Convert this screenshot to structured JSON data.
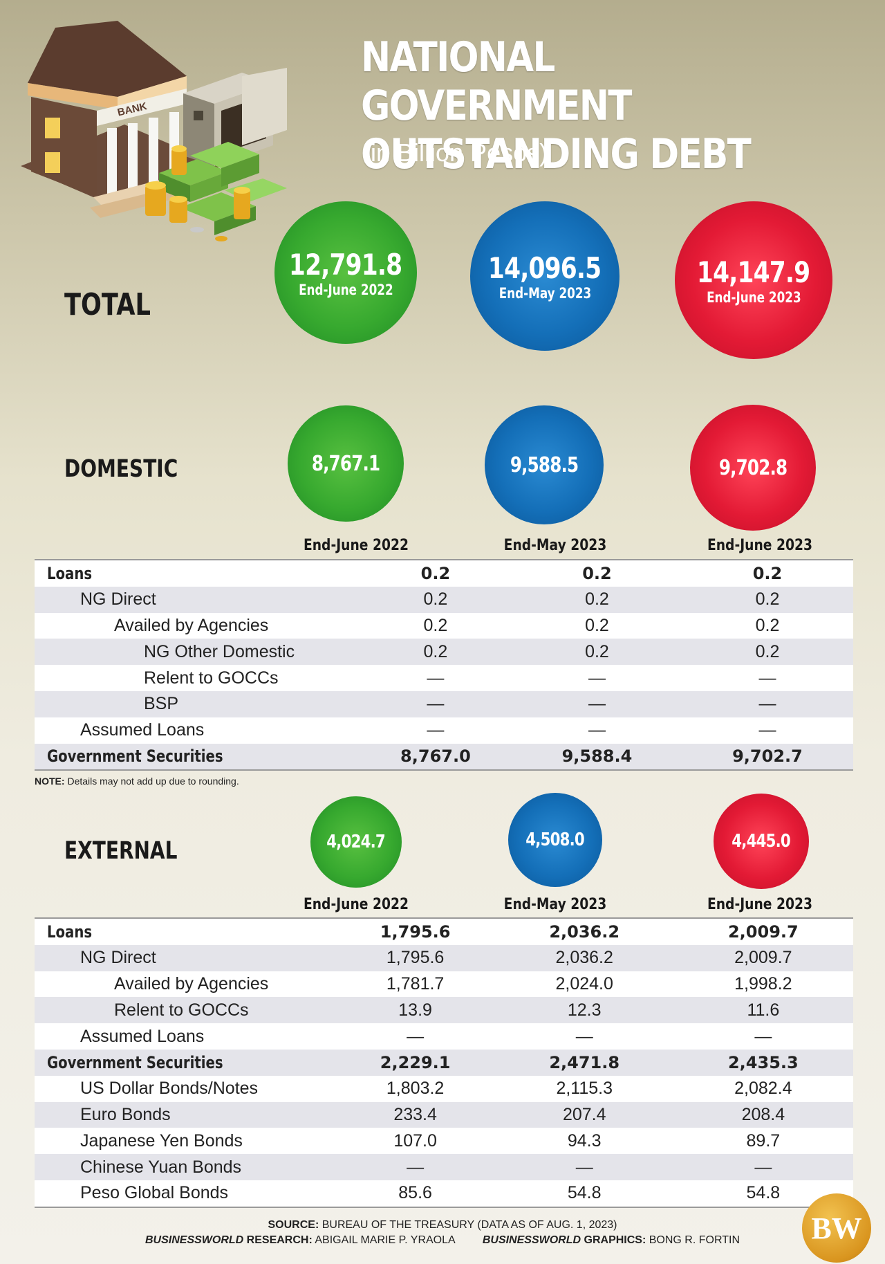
{
  "header": {
    "title_line1": "NATIONAL GOVERNMENT",
    "title_line2": "OUTSTANDING DEBT",
    "subtitle": "(in Billion Pesos)"
  },
  "colors": {
    "green": "#37a92f",
    "blue": "#146fb8",
    "red": "#e31a35",
    "logo": "#d9951f"
  },
  "icons": [
    "bank-building-icon",
    "vault-safe-icon",
    "cash-stacks-icon",
    "coins-icon"
  ],
  "periods": [
    "End-June 2022",
    "End-May 2023",
    "End-June 2023"
  ],
  "total": {
    "label": "TOTAL",
    "values": [
      "12,791.8",
      "14,096.5",
      "14,147.9"
    ]
  },
  "domestic": {
    "label": "DOMESTIC",
    "values": [
      "8,767.1",
      "9,588.5",
      "9,702.8"
    ],
    "rows": [
      {
        "label": "Loans",
        "level": 0,
        "bold": true,
        "values": [
          "0.2",
          "0.2",
          "0.2"
        ]
      },
      {
        "label": "NG Direct",
        "level": 1,
        "bold": false,
        "values": [
          "0.2",
          "0.2",
          "0.2"
        ]
      },
      {
        "label": "Availed by Agencies",
        "level": 2,
        "bold": false,
        "values": [
          "0.2",
          "0.2",
          "0.2"
        ]
      },
      {
        "label": "NG Other Domestic",
        "level": 3,
        "bold": false,
        "values": [
          "0.2",
          "0.2",
          "0.2"
        ]
      },
      {
        "label": "Relent to GOCCs",
        "level": 3,
        "bold": false,
        "values": [
          "—",
          "—",
          "—"
        ]
      },
      {
        "label": "BSP",
        "level": 3,
        "bold": false,
        "values": [
          "—",
          "—",
          "—"
        ]
      },
      {
        "label": "Assumed Loans",
        "level": 1,
        "bold": false,
        "values": [
          "—",
          "—",
          "—"
        ]
      },
      {
        "label": "Government Securities",
        "level": 0,
        "bold": true,
        "values": [
          "8,767.0",
          "9,588.4",
          "9,702.7"
        ]
      }
    ]
  },
  "note": {
    "label": "NOTE:",
    "text": " Details may not add up due to rounding."
  },
  "external": {
    "label": "EXTERNAL",
    "values": [
      "4,024.7",
      "4,508.0",
      "4,445.0"
    ],
    "rows": [
      {
        "label": "Loans",
        "level": 0,
        "bold": true,
        "values": [
          "1,795.6",
          "2,036.2",
          "2,009.7"
        ]
      },
      {
        "label": "NG Direct",
        "level": 1,
        "bold": false,
        "values": [
          "1,795.6",
          "2,036.2",
          "2,009.7"
        ]
      },
      {
        "label": "Availed by Agencies",
        "level": 2,
        "bold": false,
        "values": [
          "1,781.7",
          "2,024.0",
          "1,998.2"
        ]
      },
      {
        "label": "Relent to GOCCs",
        "level": 2,
        "bold": false,
        "values": [
          "13.9",
          "12.3",
          "11.6"
        ]
      },
      {
        "label": "Assumed Loans",
        "level": 1,
        "bold": false,
        "values": [
          "—",
          "—",
          "—"
        ]
      },
      {
        "label": "Government Securities",
        "level": 0,
        "bold": true,
        "values": [
          "2,229.1",
          "2,471.8",
          "2,435.3"
        ]
      },
      {
        "label": "US Dollar Bonds/Notes",
        "level": 1,
        "bold": false,
        "values": [
          "1,803.2",
          "2,115.3",
          "2,082.4"
        ]
      },
      {
        "label": "Euro Bonds",
        "level": 1,
        "bold": false,
        "values": [
          "233.4",
          "207.4",
          "208.4"
        ]
      },
      {
        "label": "Japanese Yen Bonds",
        "level": 1,
        "bold": false,
        "values": [
          "107.0",
          "94.3",
          "89.7"
        ]
      },
      {
        "label": "Chinese Yuan Bonds",
        "level": 1,
        "bold": false,
        "values": [
          "—",
          "—",
          "—"
        ]
      },
      {
        "label": "Peso Global Bonds",
        "level": 1,
        "bold": false,
        "values": [
          "85.6",
          "54.8",
          "54.8"
        ]
      }
    ]
  },
  "footer": {
    "source_label": "SOURCE:",
    "source_text": " BUREAU OF THE TREASURY (DATA AS OF AUG. 1, 2023)",
    "research_label": "BUSINESSWORLD",
    "research_suffix": " RESEARCH:",
    "research_name": " ABIGAIL MARIE P. YRAOLA",
    "graphics_label": "BUSINESSWORLD",
    "graphics_suffix": " GRAPHICS:",
    "graphics_name": " BONG R. FORTIN",
    "logo_text": "BW"
  },
  "chart_data": {
    "type": "table",
    "title": "NATIONAL GOVERNMENT OUTSTANDING DEBT",
    "subtitle": "(in Billion Pesos)",
    "columns": [
      "End-June 2022",
      "End-May 2023",
      "End-June 2023"
    ],
    "totals": {
      "TOTAL": [
        12791.8,
        14096.5,
        14147.9
      ],
      "DOMESTIC": [
        8767.1,
        9588.5,
        9702.8
      ],
      "EXTERNAL": [
        4024.7,
        4508.0,
        4445.0
      ]
    },
    "domestic_rows": [
      {
        "label": "Loans",
        "values": [
          0.2,
          0.2,
          0.2
        ]
      },
      {
        "label": "NG Direct",
        "values": [
          0.2,
          0.2,
          0.2
        ]
      },
      {
        "label": "Availed by Agencies",
        "values": [
          0.2,
          0.2,
          0.2
        ]
      },
      {
        "label": "NG Other Domestic",
        "values": [
          0.2,
          0.2,
          0.2
        ]
      },
      {
        "label": "Relent to GOCCs",
        "values": [
          null,
          null,
          null
        ]
      },
      {
        "label": "BSP",
        "values": [
          null,
          null,
          null
        ]
      },
      {
        "label": "Assumed Loans",
        "values": [
          null,
          null,
          null
        ]
      },
      {
        "label": "Government Securities",
        "values": [
          8767.0,
          9588.4,
          9702.7
        ]
      }
    ],
    "external_rows": [
      {
        "label": "Loans",
        "values": [
          1795.6,
          2036.2,
          2009.7
        ]
      },
      {
        "label": "NG Direct",
        "values": [
          1795.6,
          2036.2,
          2009.7
        ]
      },
      {
        "label": "Availed by Agencies",
        "values": [
          1781.7,
          2024.0,
          1998.2
        ]
      },
      {
        "label": "Relent to GOCCs",
        "values": [
          13.9,
          12.3,
          11.6
        ]
      },
      {
        "label": "Assumed Loans",
        "values": [
          null,
          null,
          null
        ]
      },
      {
        "label": "Government Securities",
        "values": [
          2229.1,
          2471.8,
          2435.3
        ]
      },
      {
        "label": "US Dollar Bonds/Notes",
        "values": [
          1803.2,
          2115.3,
          2082.4
        ]
      },
      {
        "label": "Euro Bonds",
        "values": [
          233.4,
          207.4,
          208.4
        ]
      },
      {
        "label": "Japanese Yen Bonds",
        "values": [
          107.0,
          94.3,
          89.7
        ]
      },
      {
        "label": "Chinese Yuan Bonds",
        "values": [
          null,
          null,
          null
        ]
      },
      {
        "label": "Peso Global Bonds",
        "values": [
          85.6,
          54.8,
          54.8
        ]
      }
    ]
  }
}
